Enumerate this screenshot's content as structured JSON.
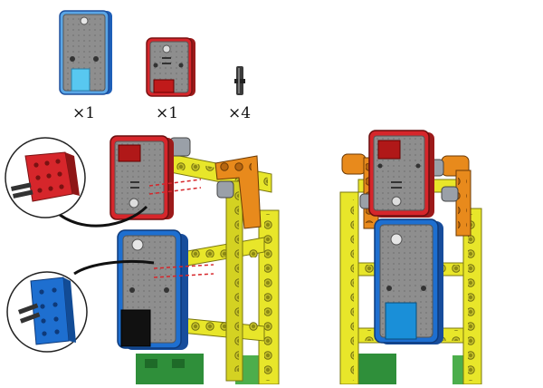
{
  "parts_list": [
    {
      "name": "blue-module",
      "quantity_label": "×1"
    },
    {
      "name": "red-module",
      "quantity_label": "×1"
    },
    {
      "name": "connector-pin",
      "quantity_label": "×4"
    }
  ],
  "colors": {
    "red": "#d6262b",
    "blue": "#1e6fd0",
    "yellow": "#e8e62a",
    "orange": "#e88a1c",
    "green": "#2f8f3a",
    "grey": "#8c8c8c",
    "cyan": "#6ec6f0"
  },
  "icons": {
    "callout_red": "red-module-back-with-pins-icon",
    "callout_blue": "blue-module-back-with-pins-icon"
  }
}
